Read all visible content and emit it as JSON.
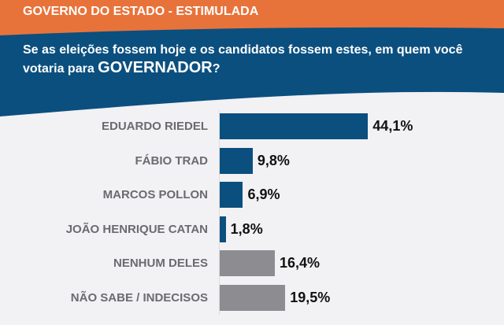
{
  "header": {
    "kicker": "GOVERNO DO ESTADO - ESTIMULADA",
    "question": "Se as eleições fossem hoje e os candidatos fossem estes, em quem você votaria para ",
    "question_emph": "GOVERNADOR",
    "question_end": "?"
  },
  "colors": {
    "orange": "#e8733a",
    "blue": "#0b4f7f",
    "candidate": "#0b4f7f",
    "other": "#8d8c90"
  },
  "chart_data": {
    "type": "bar",
    "orientation": "horizontal",
    "categories": [
      "EDUARDO RIEDEL",
      "FÁBIO TRAD",
      "MARCOS POLLON",
      "JOÃO HENRIQUE CATAN",
      "NENHUM  DELES",
      "NÃO SABE / INDECISOS"
    ],
    "values": [
      44.1,
      9.8,
      6.9,
      1.8,
      16.4,
      19.5
    ],
    "labels": [
      "44,1%",
      "9,8%",
      "6,9%",
      "1,8%",
      "16,4%",
      "19,5%"
    ],
    "bar_colors": [
      "#0b4f7f",
      "#0b4f7f",
      "#0b4f7f",
      "#0b4f7f",
      "#8d8c90",
      "#8d8c90"
    ],
    "grid": false
  }
}
